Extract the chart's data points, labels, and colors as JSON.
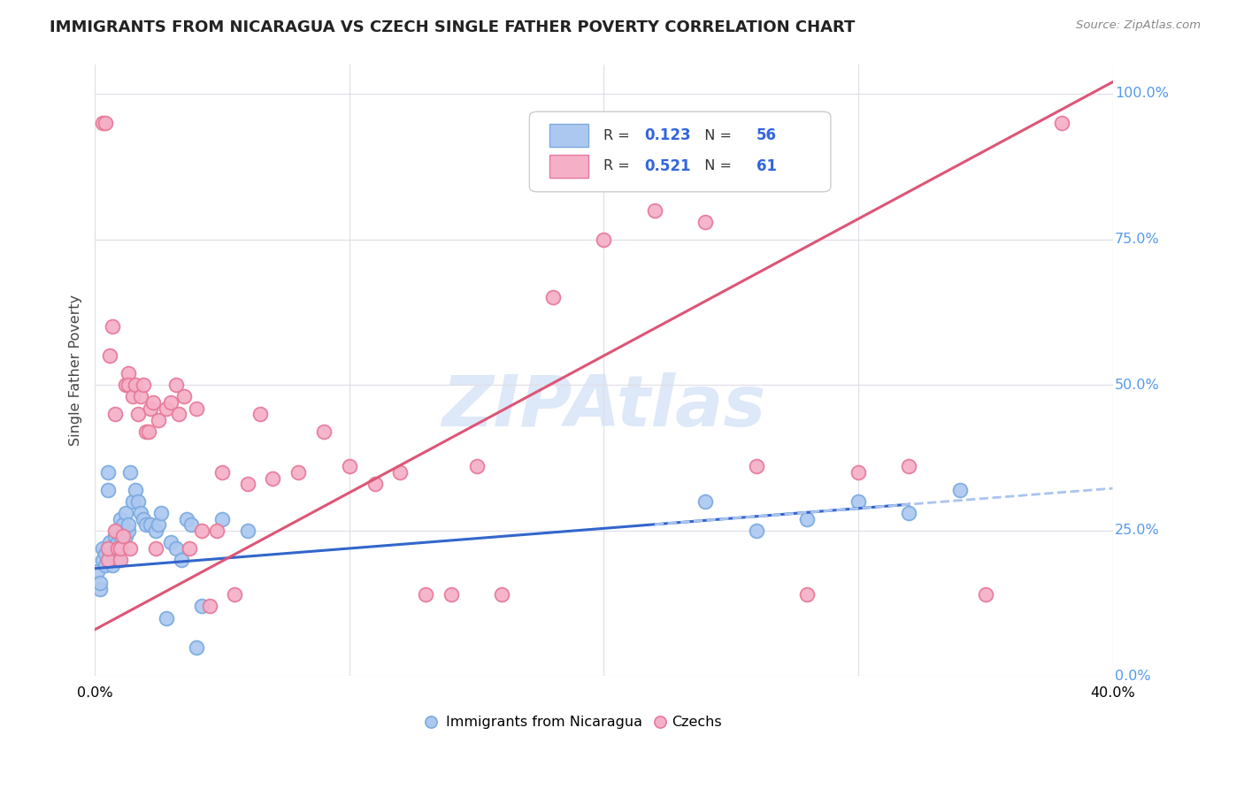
{
  "title": "IMMIGRANTS FROM NICARAGUA VS CZECH SINGLE FATHER POVERTY CORRELATION CHART",
  "source": "Source: ZipAtlas.com",
  "ylabel": "Single Father Poverty",
  "legend_label_blue": "Immigrants from Nicaragua",
  "legend_label_pink": "Czechs",
  "R_blue": 0.123,
  "N_blue": 56,
  "R_pink": 0.521,
  "N_pink": 61,
  "background_color": "#ffffff",
  "grid_color": "#e0e0e8",
  "blue_dot_color": "#adc8f0",
  "blue_dot_edge": "#7aaae0",
  "pink_dot_color": "#f5b0c8",
  "pink_dot_edge": "#e87898",
  "blue_line_color": "#3366cc",
  "pink_line_color": "#dd5577",
  "blue_dashed_color": "#aac4f0",
  "watermark_color": "#dde8f8",
  "blue_scatter_x": [
    0.001,
    0.002,
    0.002,
    0.003,
    0.003,
    0.004,
    0.004,
    0.005,
    0.005,
    0.005,
    0.006,
    0.006,
    0.006,
    0.007,
    0.007,
    0.008,
    0.008,
    0.009,
    0.009,
    0.009,
    0.01,
    0.01,
    0.01,
    0.011,
    0.011,
    0.012,
    0.012,
    0.013,
    0.013,
    0.014,
    0.015,
    0.016,
    0.017,
    0.018,
    0.019,
    0.02,
    0.022,
    0.024,
    0.025,
    0.026,
    0.028,
    0.03,
    0.032,
    0.034,
    0.036,
    0.038,
    0.04,
    0.042,
    0.05,
    0.06,
    0.24,
    0.26,
    0.28,
    0.3,
    0.32,
    0.34
  ],
  "blue_scatter_y": [
    0.18,
    0.15,
    0.16,
    0.2,
    0.22,
    0.19,
    0.21,
    0.35,
    0.32,
    0.22,
    0.22,
    0.23,
    0.2,
    0.19,
    0.21,
    0.24,
    0.22,
    0.2,
    0.23,
    0.25,
    0.24,
    0.22,
    0.27,
    0.25,
    0.26,
    0.24,
    0.28,
    0.25,
    0.26,
    0.35,
    0.3,
    0.32,
    0.3,
    0.28,
    0.27,
    0.26,
    0.26,
    0.25,
    0.26,
    0.28,
    0.1,
    0.23,
    0.22,
    0.2,
    0.27,
    0.26,
    0.05,
    0.12,
    0.27,
    0.25,
    0.3,
    0.25,
    0.27,
    0.3,
    0.28,
    0.32
  ],
  "pink_scatter_x": [
    0.003,
    0.004,
    0.005,
    0.005,
    0.006,
    0.007,
    0.008,
    0.008,
    0.009,
    0.01,
    0.01,
    0.011,
    0.012,
    0.013,
    0.013,
    0.014,
    0.015,
    0.016,
    0.017,
    0.018,
    0.019,
    0.02,
    0.021,
    0.022,
    0.023,
    0.024,
    0.025,
    0.028,
    0.03,
    0.032,
    0.033,
    0.035,
    0.037,
    0.04,
    0.042,
    0.045,
    0.048,
    0.05,
    0.055,
    0.06,
    0.065,
    0.07,
    0.08,
    0.09,
    0.1,
    0.11,
    0.12,
    0.13,
    0.14,
    0.15,
    0.16,
    0.18,
    0.2,
    0.22,
    0.24,
    0.26,
    0.28,
    0.3,
    0.32,
    0.35,
    0.38
  ],
  "pink_scatter_y": [
    0.95,
    0.95,
    0.2,
    0.22,
    0.55,
    0.6,
    0.45,
    0.25,
    0.22,
    0.2,
    0.22,
    0.24,
    0.5,
    0.52,
    0.5,
    0.22,
    0.48,
    0.5,
    0.45,
    0.48,
    0.5,
    0.42,
    0.42,
    0.46,
    0.47,
    0.22,
    0.44,
    0.46,
    0.47,
    0.5,
    0.45,
    0.48,
    0.22,
    0.46,
    0.25,
    0.12,
    0.25,
    0.35,
    0.14,
    0.33,
    0.45,
    0.34,
    0.35,
    0.42,
    0.36,
    0.33,
    0.35,
    0.14,
    0.14,
    0.36,
    0.14,
    0.65,
    0.75,
    0.8,
    0.78,
    0.36,
    0.14,
    0.35,
    0.36,
    0.14,
    0.95
  ],
  "xlim": [
    0.0,
    0.4
  ],
  "ylim": [
    0.0,
    1.05
  ],
  "yticks": [
    0.0,
    0.25,
    0.5,
    0.75,
    1.0
  ],
  "ytick_labels": [
    "0.0%",
    "25.0%",
    "50.0%",
    "75.0%",
    "100.0%"
  ],
  "xtick_left": "0.0%",
  "xtick_right": "40.0%"
}
